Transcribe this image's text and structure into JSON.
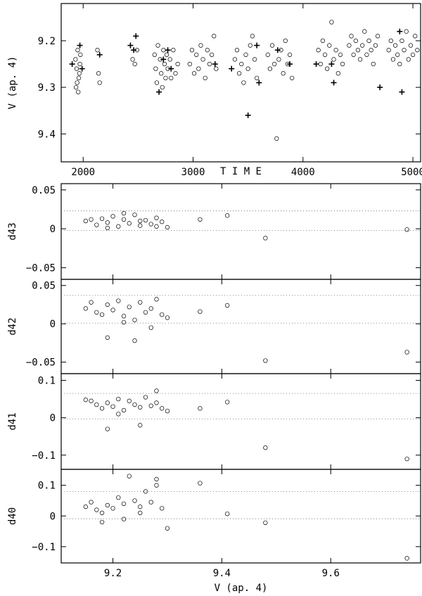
{
  "chart_data": [
    {
      "type": "scatter",
      "xlabel": "T I M E",
      "ylabel": "V (ap. 4)",
      "xlim": [
        1800,
        5070
      ],
      "ylim": [
        9.46,
        9.12
      ],
      "y_inverted": true,
      "x_ticks": [
        2000,
        3000,
        4000,
        5000
      ],
      "x_tick_labels": [
        "2000",
        "3000",
        "4000",
        "5000"
      ],
      "y_ticks": [
        9.2,
        9.3,
        9.4
      ],
      "y_tick_labels": [
        "9.2",
        "9.3",
        "9.4"
      ],
      "series": [
        {
          "marker": "circle",
          "points": [
            [
              1930,
              9.24
            ],
            [
              1940,
              9.26
            ],
            [
              1950,
              9.22
            ],
            [
              1960,
              9.28
            ],
            [
              1970,
              9.25
            ],
            [
              1935,
              9.3
            ],
            [
              1955,
              9.31
            ],
            [
              1975,
              9.23
            ],
            [
              1945,
              9.29
            ],
            [
              1965,
              9.27
            ],
            [
              2130,
              9.22
            ],
            [
              2140,
              9.27
            ],
            [
              2150,
              9.29
            ],
            [
              2450,
              9.24
            ],
            [
              2470,
              9.25
            ],
            [
              2490,
              9.22
            ],
            [
              2650,
              9.23
            ],
            [
              2660,
              9.26
            ],
            [
              2670,
              9.29
            ],
            [
              2680,
              9.21
            ],
            [
              2700,
              9.24
            ],
            [
              2710,
              9.27
            ],
            [
              2720,
              9.3
            ],
            [
              2730,
              9.22
            ],
            [
              2740,
              9.25
            ],
            [
              2750,
              9.28
            ],
            [
              2760,
              9.23
            ],
            [
              2770,
              9.26
            ],
            [
              2790,
              9.24
            ],
            [
              2800,
              9.28
            ],
            [
              2820,
              9.22
            ],
            [
              2840,
              9.27
            ],
            [
              2860,
              9.25
            ],
            [
              2970,
              9.25
            ],
            [
              2990,
              9.22
            ],
            [
              3010,
              9.27
            ],
            [
              3030,
              9.23
            ],
            [
              3050,
              9.26
            ],
            [
              3070,
              9.21
            ],
            [
              3090,
              9.24
            ],
            [
              3110,
              9.28
            ],
            [
              3130,
              9.22
            ],
            [
              3150,
              9.25
            ],
            [
              3170,
              9.23
            ],
            [
              3190,
              9.19
            ],
            [
              3210,
              9.26
            ],
            [
              3380,
              9.24
            ],
            [
              3400,
              9.22
            ],
            [
              3420,
              9.27
            ],
            [
              3440,
              9.25
            ],
            [
              3460,
              9.29
            ],
            [
              3480,
              9.23
            ],
            [
              3500,
              9.26
            ],
            [
              3520,
              9.21
            ],
            [
              3540,
              9.19
            ],
            [
              3560,
              9.24
            ],
            [
              3580,
              9.28
            ],
            [
              3680,
              9.23
            ],
            [
              3700,
              9.26
            ],
            [
              3720,
              9.21
            ],
            [
              3740,
              9.25
            ],
            [
              3760,
              9.41
            ],
            [
              3780,
              9.24
            ],
            [
              3800,
              9.22
            ],
            [
              3820,
              9.27
            ],
            [
              3840,
              9.2
            ],
            [
              3860,
              9.25
            ],
            [
              3880,
              9.23
            ],
            [
              3900,
              9.28
            ],
            [
              4140,
              9.22
            ],
            [
              4160,
              9.25
            ],
            [
              4180,
              9.2
            ],
            [
              4200,
              9.23
            ],
            [
              4220,
              9.26
            ],
            [
              4240,
              9.21
            ],
            [
              4260,
              9.16
            ],
            [
              4280,
              9.24
            ],
            [
              4300,
              9.22
            ],
            [
              4320,
              9.27
            ],
            [
              4340,
              9.23
            ],
            [
              4360,
              9.25
            ],
            [
              4420,
              9.21
            ],
            [
              4440,
              9.19
            ],
            [
              4460,
              9.23
            ],
            [
              4480,
              9.2
            ],
            [
              4500,
              9.22
            ],
            [
              4520,
              9.24
            ],
            [
              4540,
              9.21
            ],
            [
              4560,
              9.18
            ],
            [
              4580,
              9.23
            ],
            [
              4600,
              9.2
            ],
            [
              4620,
              9.22
            ],
            [
              4640,
              9.25
            ],
            [
              4660,
              9.21
            ],
            [
              4680,
              9.19
            ],
            [
              4780,
              9.22
            ],
            [
              4800,
              9.2
            ],
            [
              4820,
              9.24
            ],
            [
              4840,
              9.21
            ],
            [
              4860,
              9.23
            ],
            [
              4880,
              9.25
            ],
            [
              4900,
              9.2
            ],
            [
              4920,
              9.22
            ],
            [
              4940,
              9.18
            ],
            [
              4960,
              9.24
            ],
            [
              4980,
              9.21
            ],
            [
              5000,
              9.23
            ],
            [
              5020,
              9.19
            ],
            [
              5040,
              9.22
            ]
          ]
        },
        {
          "marker": "plus",
          "points": [
            [
              1900,
              9.25
            ],
            [
              1970,
              9.21
            ],
            [
              1990,
              9.26
            ],
            [
              2150,
              9.23
            ],
            [
              2430,
              9.21
            ],
            [
              2460,
              9.22
            ],
            [
              2480,
              9.19
            ],
            [
              2690,
              9.31
            ],
            [
              2730,
              9.24
            ],
            [
              2770,
              9.22
            ],
            [
              2800,
              9.26
            ],
            [
              3200,
              9.25
            ],
            [
              3350,
              9.26
            ],
            [
              3500,
              9.36
            ],
            [
              3580,
              9.21
            ],
            [
              3600,
              9.29
            ],
            [
              3770,
              9.22
            ],
            [
              3880,
              9.25
            ],
            [
              4120,
              9.25
            ],
            [
              4260,
              9.25
            ],
            [
              4280,
              9.29
            ],
            [
              4700,
              9.3
            ],
            [
              4880,
              9.18
            ],
            [
              4900,
              9.31
            ]
          ]
        }
      ]
    },
    {
      "type": "scatter",
      "xlabel": "",
      "ylabel": "d43",
      "xlim": [
        9.105,
        9.765
      ],
      "ylim": [
        -0.065,
        0.058
      ],
      "y_ticks": [
        0.05,
        0,
        -0.05
      ],
      "y_tick_labels": [
        "0.05",
        "0",
        "−0.05"
      ],
      "ref_lines": [
        0.023,
        -0.002
      ],
      "points": [
        [
          9.15,
          0.01
        ],
        [
          9.17,
          0.005
        ],
        [
          9.18,
          0.013
        ],
        [
          9.19,
          0.008
        ],
        [
          9.2,
          0.016
        ],
        [
          9.21,
          0.003
        ],
        [
          9.22,
          0.012
        ],
        [
          9.23,
          0.007
        ],
        [
          9.24,
          0.018
        ],
        [
          9.25,
          0.004
        ],
        [
          9.26,
          0.011
        ],
        [
          9.27,
          0.006
        ],
        [
          9.28,
          0.014
        ],
        [
          9.29,
          0.009
        ],
        [
          9.3,
          0.002
        ],
        [
          9.16,
          0.012
        ],
        [
          9.19,
          0.001
        ],
        [
          9.22,
          0.02
        ],
        [
          9.25,
          0.01
        ],
        [
          9.28,
          0.003
        ],
        [
          9.36,
          0.012
        ],
        [
          9.41,
          0.017
        ],
        [
          9.48,
          -0.012
        ],
        [
          9.74,
          -0.001
        ]
      ]
    },
    {
      "type": "scatter",
      "xlabel": "",
      "ylabel": "d42",
      "xlim": [
        9.105,
        9.765
      ],
      "ylim": [
        -0.065,
        0.058
      ],
      "y_ticks": [
        0.05,
        0,
        -0.05
      ],
      "y_tick_labels": [
        "0.05",
        "0",
        "−0.05"
      ],
      "ref_lines": [
        0.037,
        0.001
      ],
      "points": [
        [
          9.15,
          0.02
        ],
        [
          9.16,
          0.028
        ],
        [
          9.17,
          0.015
        ],
        [
          9.18,
          0.012
        ],
        [
          9.19,
          0.025
        ],
        [
          9.2,
          0.018
        ],
        [
          9.21,
          0.03
        ],
        [
          9.22,
          0.01
        ],
        [
          9.23,
          0.022
        ],
        [
          9.24,
          0.005
        ],
        [
          9.25,
          0.028
        ],
        [
          9.26,
          0.015
        ],
        [
          9.27,
          0.02
        ],
        [
          9.28,
          0.032
        ],
        [
          9.29,
          0.012
        ],
        [
          9.3,
          0.008
        ],
        [
          9.19,
          -0.018
        ],
        [
          9.24,
          -0.022
        ],
        [
          9.22,
          0.002
        ],
        [
          9.27,
          -0.005
        ],
        [
          9.36,
          0.016
        ],
        [
          9.41,
          0.024
        ],
        [
          9.48,
          -0.048
        ],
        [
          9.74,
          -0.037
        ]
      ]
    },
    {
      "type": "scatter",
      "xlabel": "",
      "ylabel": "d41",
      "xlim": [
        9.105,
        9.765
      ],
      "ylim": [
        -0.138,
        0.118
      ],
      "y_ticks": [
        0.1,
        0,
        -0.1
      ],
      "y_tick_labels": [
        "0.1",
        "0",
        "−0.1"
      ],
      "ref_lines": [
        0.065,
        -0.003
      ],
      "points": [
        [
          9.15,
          0.048
        ],
        [
          9.16,
          0.045
        ],
        [
          9.17,
          0.035
        ],
        [
          9.18,
          0.025
        ],
        [
          9.19,
          0.04
        ],
        [
          9.2,
          0.03
        ],
        [
          9.21,
          0.05
        ],
        [
          9.22,
          0.02
        ],
        [
          9.23,
          0.045
        ],
        [
          9.24,
          0.035
        ],
        [
          9.25,
          0.028
        ],
        [
          9.26,
          0.055
        ],
        [
          9.27,
          0.032
        ],
        [
          9.28,
          0.04
        ],
        [
          9.29,
          0.025
        ],
        [
          9.3,
          0.018
        ],
        [
          9.19,
          -0.03
        ],
        [
          9.25,
          -0.02
        ],
        [
          9.21,
          0.01
        ],
        [
          9.28,
          0.072
        ],
        [
          9.36,
          0.025
        ],
        [
          9.41,
          0.042
        ],
        [
          9.48,
          -0.08
        ],
        [
          9.74,
          -0.11
        ]
      ]
    },
    {
      "type": "scatter",
      "xlabel": "V (ap. 4)",
      "ylabel": "d40",
      "xlim": [
        9.105,
        9.765
      ],
      "ylim": [
        -0.153,
        0.152
      ],
      "x_ticks": [
        9.2,
        9.4,
        9.6
      ],
      "x_tick_labels": [
        "9.2",
        "9.4",
        "9.6"
      ],
      "y_ticks": [
        0.1,
        0,
        -0.1
      ],
      "y_tick_labels": [
        "0.1",
        "0",
        "−0.1"
      ],
      "ref_lines": [
        0.08,
        -0.009
      ],
      "points": [
        [
          9.15,
          0.03
        ],
        [
          9.16,
          0.045
        ],
        [
          9.17,
          0.02
        ],
        [
          9.18,
          0.01
        ],
        [
          9.19,
          0.035
        ],
        [
          9.2,
          0.025
        ],
        [
          9.21,
          0.06
        ],
        [
          9.22,
          0.04
        ],
        [
          9.23,
          0.13
        ],
        [
          9.24,
          0.05
        ],
        [
          9.25,
          0.03
        ],
        [
          9.26,
          0.08
        ],
        [
          9.27,
          0.045
        ],
        [
          9.28,
          0.1
        ],
        [
          9.29,
          0.025
        ],
        [
          9.3,
          -0.04
        ],
        [
          9.18,
          -0.02
        ],
        [
          9.22,
          -0.01
        ],
        [
          9.25,
          0.01
        ],
        [
          9.28,
          0.12
        ],
        [
          9.36,
          0.107
        ],
        [
          9.41,
          0.007
        ],
        [
          9.48,
          -0.022
        ],
        [
          9.74,
          -0.138
        ]
      ]
    }
  ]
}
